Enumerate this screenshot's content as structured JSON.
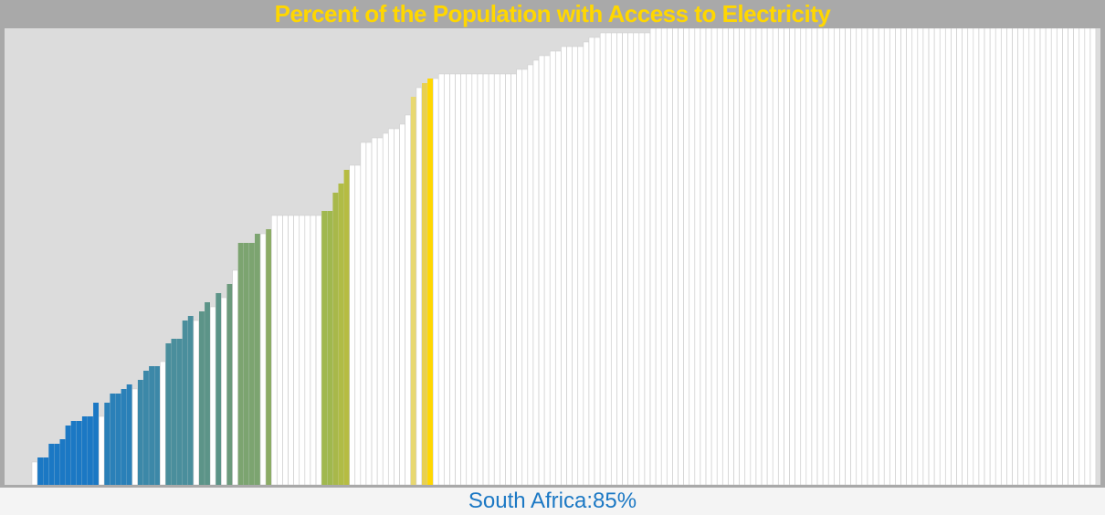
{
  "header": {
    "title": "Percent of the Population with Access to Electricity"
  },
  "footer": {
    "selected_country": "South Africa",
    "separator": ":",
    "selected_value": "85%"
  },
  "colors": {
    "frame": "#a9a9a9",
    "plot_bg": "#dcdcdc",
    "title_text": "#ffd700",
    "footer_text": "#1b78c4",
    "bar_default": "#ffffff",
    "bar_border": "#c9c9c9",
    "highlight": "#ffd700",
    "gradient_start": "#1b78c4",
    "gradient_end": "#c8c83a"
  },
  "chart_data": {
    "type": "bar",
    "title": "Percent of the Population with Access to Electricity",
    "xlabel": "",
    "ylabel": "",
    "ylim": [
      0,
      100
    ],
    "grid": false,
    "legend": "none",
    "selected": {
      "label": "South Africa",
      "value": 85
    },
    "highlight_indices": [
      77,
      155,
      188
    ],
    "segments": [
      {
        "count": 1,
        "value": 5,
        "color": "#ffffff"
      },
      {
        "count": 2,
        "value": 6,
        "color": "#1b78c4"
      },
      {
        "count": 2,
        "value": 9,
        "color": "#1b78c4"
      },
      {
        "count": 1,
        "value": 10,
        "color": "#1b78c4"
      },
      {
        "count": 1,
        "value": 13,
        "color": "#1b78c4"
      },
      {
        "count": 2,
        "value": 14,
        "color": "#1b78c4"
      },
      {
        "count": 2,
        "value": 15,
        "color": "#1b78c4"
      },
      {
        "count": 1,
        "value": 18,
        "color": "#1b78c4"
      },
      {
        "count": 1,
        "value": 15,
        "color": "#ffffff"
      },
      {
        "count": 1,
        "value": 18,
        "color": "#2a80b8"
      },
      {
        "count": 2,
        "value": 20,
        "color": "#2a80b8"
      },
      {
        "count": 1,
        "value": 21,
        "color": "#2a80b8"
      },
      {
        "count": 1,
        "value": 22,
        "color": "#2a80b8"
      },
      {
        "count": 1,
        "value": 21,
        "color": "#ffffff"
      },
      {
        "count": 1,
        "value": 23,
        "color": "#3c88a8"
      },
      {
        "count": 1,
        "value": 25,
        "color": "#3c88a8"
      },
      {
        "count": 2,
        "value": 26,
        "color": "#3c88a8"
      },
      {
        "count": 1,
        "value": 27,
        "color": "#ffffff"
      },
      {
        "count": 1,
        "value": 31,
        "color": "#4a8e9c"
      },
      {
        "count": 2,
        "value": 32,
        "color": "#4a8e9c"
      },
      {
        "count": 1,
        "value": 36,
        "color": "#4a8e9c"
      },
      {
        "count": 1,
        "value": 37,
        "color": "#4a8e9c"
      },
      {
        "count": 1,
        "value": 36,
        "color": "#ffffff"
      },
      {
        "count": 1,
        "value": 38,
        "color": "#5c9488"
      },
      {
        "count": 1,
        "value": 40,
        "color": "#5c9488"
      },
      {
        "count": 1,
        "value": 39,
        "color": "#ffffff"
      },
      {
        "count": 1,
        "value": 42,
        "color": "#5c9488"
      },
      {
        "count": 1,
        "value": 41,
        "color": "#ffffff"
      },
      {
        "count": 1,
        "value": 44,
        "color": "#6c9a7c"
      },
      {
        "count": 1,
        "value": 47,
        "color": "#ffffff"
      },
      {
        "count": 3,
        "value": 53,
        "color": "#7ca470"
      },
      {
        "count": 1,
        "value": 55,
        "color": "#7ca470"
      },
      {
        "count": 1,
        "value": 55,
        "color": "#ffffff"
      },
      {
        "count": 1,
        "value": 56,
        "color": "#8cac66"
      },
      {
        "count": 9,
        "value": 59,
        "color": "#ffffff"
      },
      {
        "count": 2,
        "value": 60,
        "color": "#a0b84e"
      },
      {
        "count": 1,
        "value": 64,
        "color": "#a8b84a"
      },
      {
        "count": 1,
        "value": 66,
        "color": "#b0bc46"
      },
      {
        "count": 1,
        "value": 69,
        "color": "#b6bc42"
      },
      {
        "count": 2,
        "value": 70,
        "color": "#ffffff"
      },
      {
        "count": 2,
        "value": 75,
        "color": "#ffffff"
      },
      {
        "count": 2,
        "value": 76,
        "color": "#ffffff"
      },
      {
        "count": 1,
        "value": 77,
        "color": "#ffffff"
      },
      {
        "count": 2,
        "value": 78,
        "color": "#ffffff"
      },
      {
        "count": 1,
        "value": 79,
        "color": "#ffffff"
      },
      {
        "count": 1,
        "value": 81,
        "color": "#ffffff"
      },
      {
        "count": 1,
        "value": 85,
        "color": "#e8d870"
      },
      {
        "count": 1,
        "value": 87,
        "color": "#ffffff"
      },
      {
        "count": 1,
        "value": 88,
        "color": "#e8d050"
      },
      {
        "count": 1,
        "value": 89,
        "color": "#ffd700"
      },
      {
        "count": 1,
        "value": 89,
        "color": "#ffffff"
      },
      {
        "count": 14,
        "value": 90,
        "color": "#ffffff"
      },
      {
        "count": 2,
        "value": 91,
        "color": "#ffffff"
      },
      {
        "count": 1,
        "value": 92,
        "color": "#ffffff"
      },
      {
        "count": 1,
        "value": 93,
        "color": "#ffffff"
      },
      {
        "count": 2,
        "value": 94,
        "color": "#ffffff"
      },
      {
        "count": 2,
        "value": 95,
        "color": "#ffffff"
      },
      {
        "count": 4,
        "value": 96,
        "color": "#ffffff"
      },
      {
        "count": 1,
        "value": 97,
        "color": "#ffffff"
      },
      {
        "count": 2,
        "value": 98,
        "color": "#ffffff"
      },
      {
        "count": 9,
        "value": 99,
        "color": "#ffffff"
      },
      {
        "count": 85,
        "value": 100,
        "color": "#ffffff"
      },
      {
        "count": 1,
        "value": 100,
        "color": "#ffd700"
      },
      {
        "count": 32,
        "value": 100,
        "color": "#ffffff"
      },
      {
        "count": 1,
        "value": 100,
        "color": "#ffd700"
      },
      {
        "count": 13,
        "value": 100,
        "color": "#ffffff"
      }
    ]
  }
}
